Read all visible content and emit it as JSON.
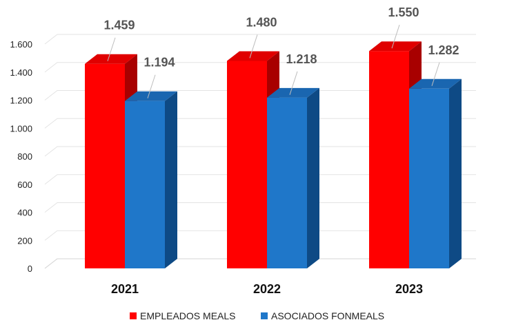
{
  "colors": {
    "series_red_front": "#ff0000",
    "series_red_top": "#e00000",
    "series_red_side": "#a80000",
    "series_blue_front": "#1f77c9",
    "series_blue_top": "#1a66b0",
    "series_blue_side": "#0e4a85"
  },
  "chart_data": {
    "type": "bar",
    "title": "",
    "categories": [
      "2021",
      "2022",
      "2023"
    ],
    "series": [
      {
        "name": "EMPLEADOS MEALS",
        "values": [
          1459,
          1480,
          1550
        ],
        "labels": [
          "1.459",
          "1.480",
          "1.550"
        ],
        "color": "#ff0000"
      },
      {
        "name": "ASOCIADOS FONMEALS",
        "values": [
          1194,
          1218,
          1282
        ],
        "labels": [
          "1.194",
          "1.218",
          "1.282"
        ],
        "color": "#1f77c9"
      }
    ],
    "xlabel": "",
    "ylabel": "",
    "ylim": [
      0,
      1600
    ],
    "yticks": [
      0,
      200,
      400,
      600,
      800,
      1000,
      1200,
      1400,
      1600
    ],
    "ytick_labels": [
      "0",
      "200",
      "400",
      "600",
      "800",
      "1.000",
      "1.200",
      "1.400",
      "1.600"
    ],
    "grid": true,
    "legend": "bottom",
    "style": "3d-bar"
  }
}
